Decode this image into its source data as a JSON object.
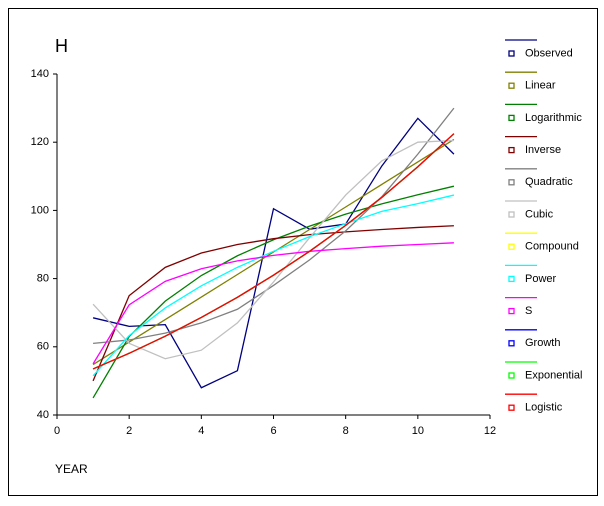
{
  "chart_data": {
    "type": "line",
    "title": "H",
    "x_label": "YEAR",
    "x": [
      1,
      2,
      3,
      4,
      5,
      6,
      7,
      8,
      9,
      10,
      11
    ],
    "xlim": [
      0,
      12
    ],
    "xticks": [
      0,
      2,
      4,
      6,
      8,
      10,
      12
    ],
    "ylim": [
      40,
      140
    ],
    "yticks": [
      40,
      60,
      80,
      100,
      120,
      140
    ],
    "grid": false,
    "legend": "right",
    "series": [
      {
        "name": "Observed",
        "color": "#000080",
        "values": [
          68.5,
          66,
          66.5,
          48,
          53,
          100.5,
          94.5,
          96,
          113,
          127,
          116.5
        ]
      },
      {
        "name": "Linear",
        "color": "#808000",
        "values": [
          54.8,
          61.4,
          68,
          74.6,
          81.2,
          87.8,
          94.4,
          101,
          107.6,
          114.2,
          120.8
        ]
      },
      {
        "name": "Logarithmic",
        "color": "#008000",
        "values": [
          45,
          63,
          73.4,
          80.9,
          86.7,
          91.4,
          95.4,
          98.9,
          101.9,
          104.6,
          107.1
        ]
      },
      {
        "name": "Inverse",
        "color": "#800000",
        "values": [
          50,
          75,
          83.3,
          87.5,
          90,
          91.7,
          92.9,
          93.7,
          94.4,
          95,
          95.5
        ]
      },
      {
        "name": "Quadratic",
        "color": "#808080",
        "values": [
          61,
          62,
          64,
          67,
          71,
          78,
          85.5,
          94,
          104,
          116.5,
          130
        ]
      },
      {
        "name": "Cubic",
        "color": "#c0c0c0",
        "values": [
          72.5,
          61,
          56.5,
          59,
          67,
          79,
          92,
          104.5,
          114.5,
          120,
          120.5
        ]
      },
      {
        "name": "Compound",
        "color": "#ffff00",
        "values": [
          53.5,
          58.1,
          63.1,
          68.6,
          74.5,
          81,
          88,
          95.6,
          103.8,
          112.8,
          122.5
        ]
      },
      {
        "name": "Power",
        "color": "#00ffff",
        "values": [
          51.5,
          63.3,
          71.4,
          77.9,
          83.3,
          88,
          92.3,
          96.1,
          99.7,
          102,
          104.5
        ]
      },
      {
        "name": "S",
        "color": "#ff00ff",
        "values": [
          55,
          72.3,
          79.2,
          82.9,
          85.2,
          86.8,
          88,
          88.8,
          89.5,
          90,
          90.5
        ]
      },
      {
        "name": "Growth",
        "color": "#0000ff",
        "values": [
          53.5,
          58.1,
          63.1,
          68.6,
          74.5,
          81,
          88,
          95.6,
          103.8,
          112.8,
          122.5
        ]
      },
      {
        "name": "Exponential",
        "color": "#00ff00",
        "values": [
          53.5,
          58.1,
          63.1,
          68.6,
          74.5,
          81,
          88,
          95.6,
          103.8,
          112.8,
          122.5
        ]
      },
      {
        "name": "Logistic",
        "color": "#ff0000",
        "values": [
          53.5,
          58.1,
          63.1,
          68.6,
          74.5,
          81,
          88,
          95.6,
          103.8,
          112.8,
          122.5
        ]
      }
    ]
  }
}
